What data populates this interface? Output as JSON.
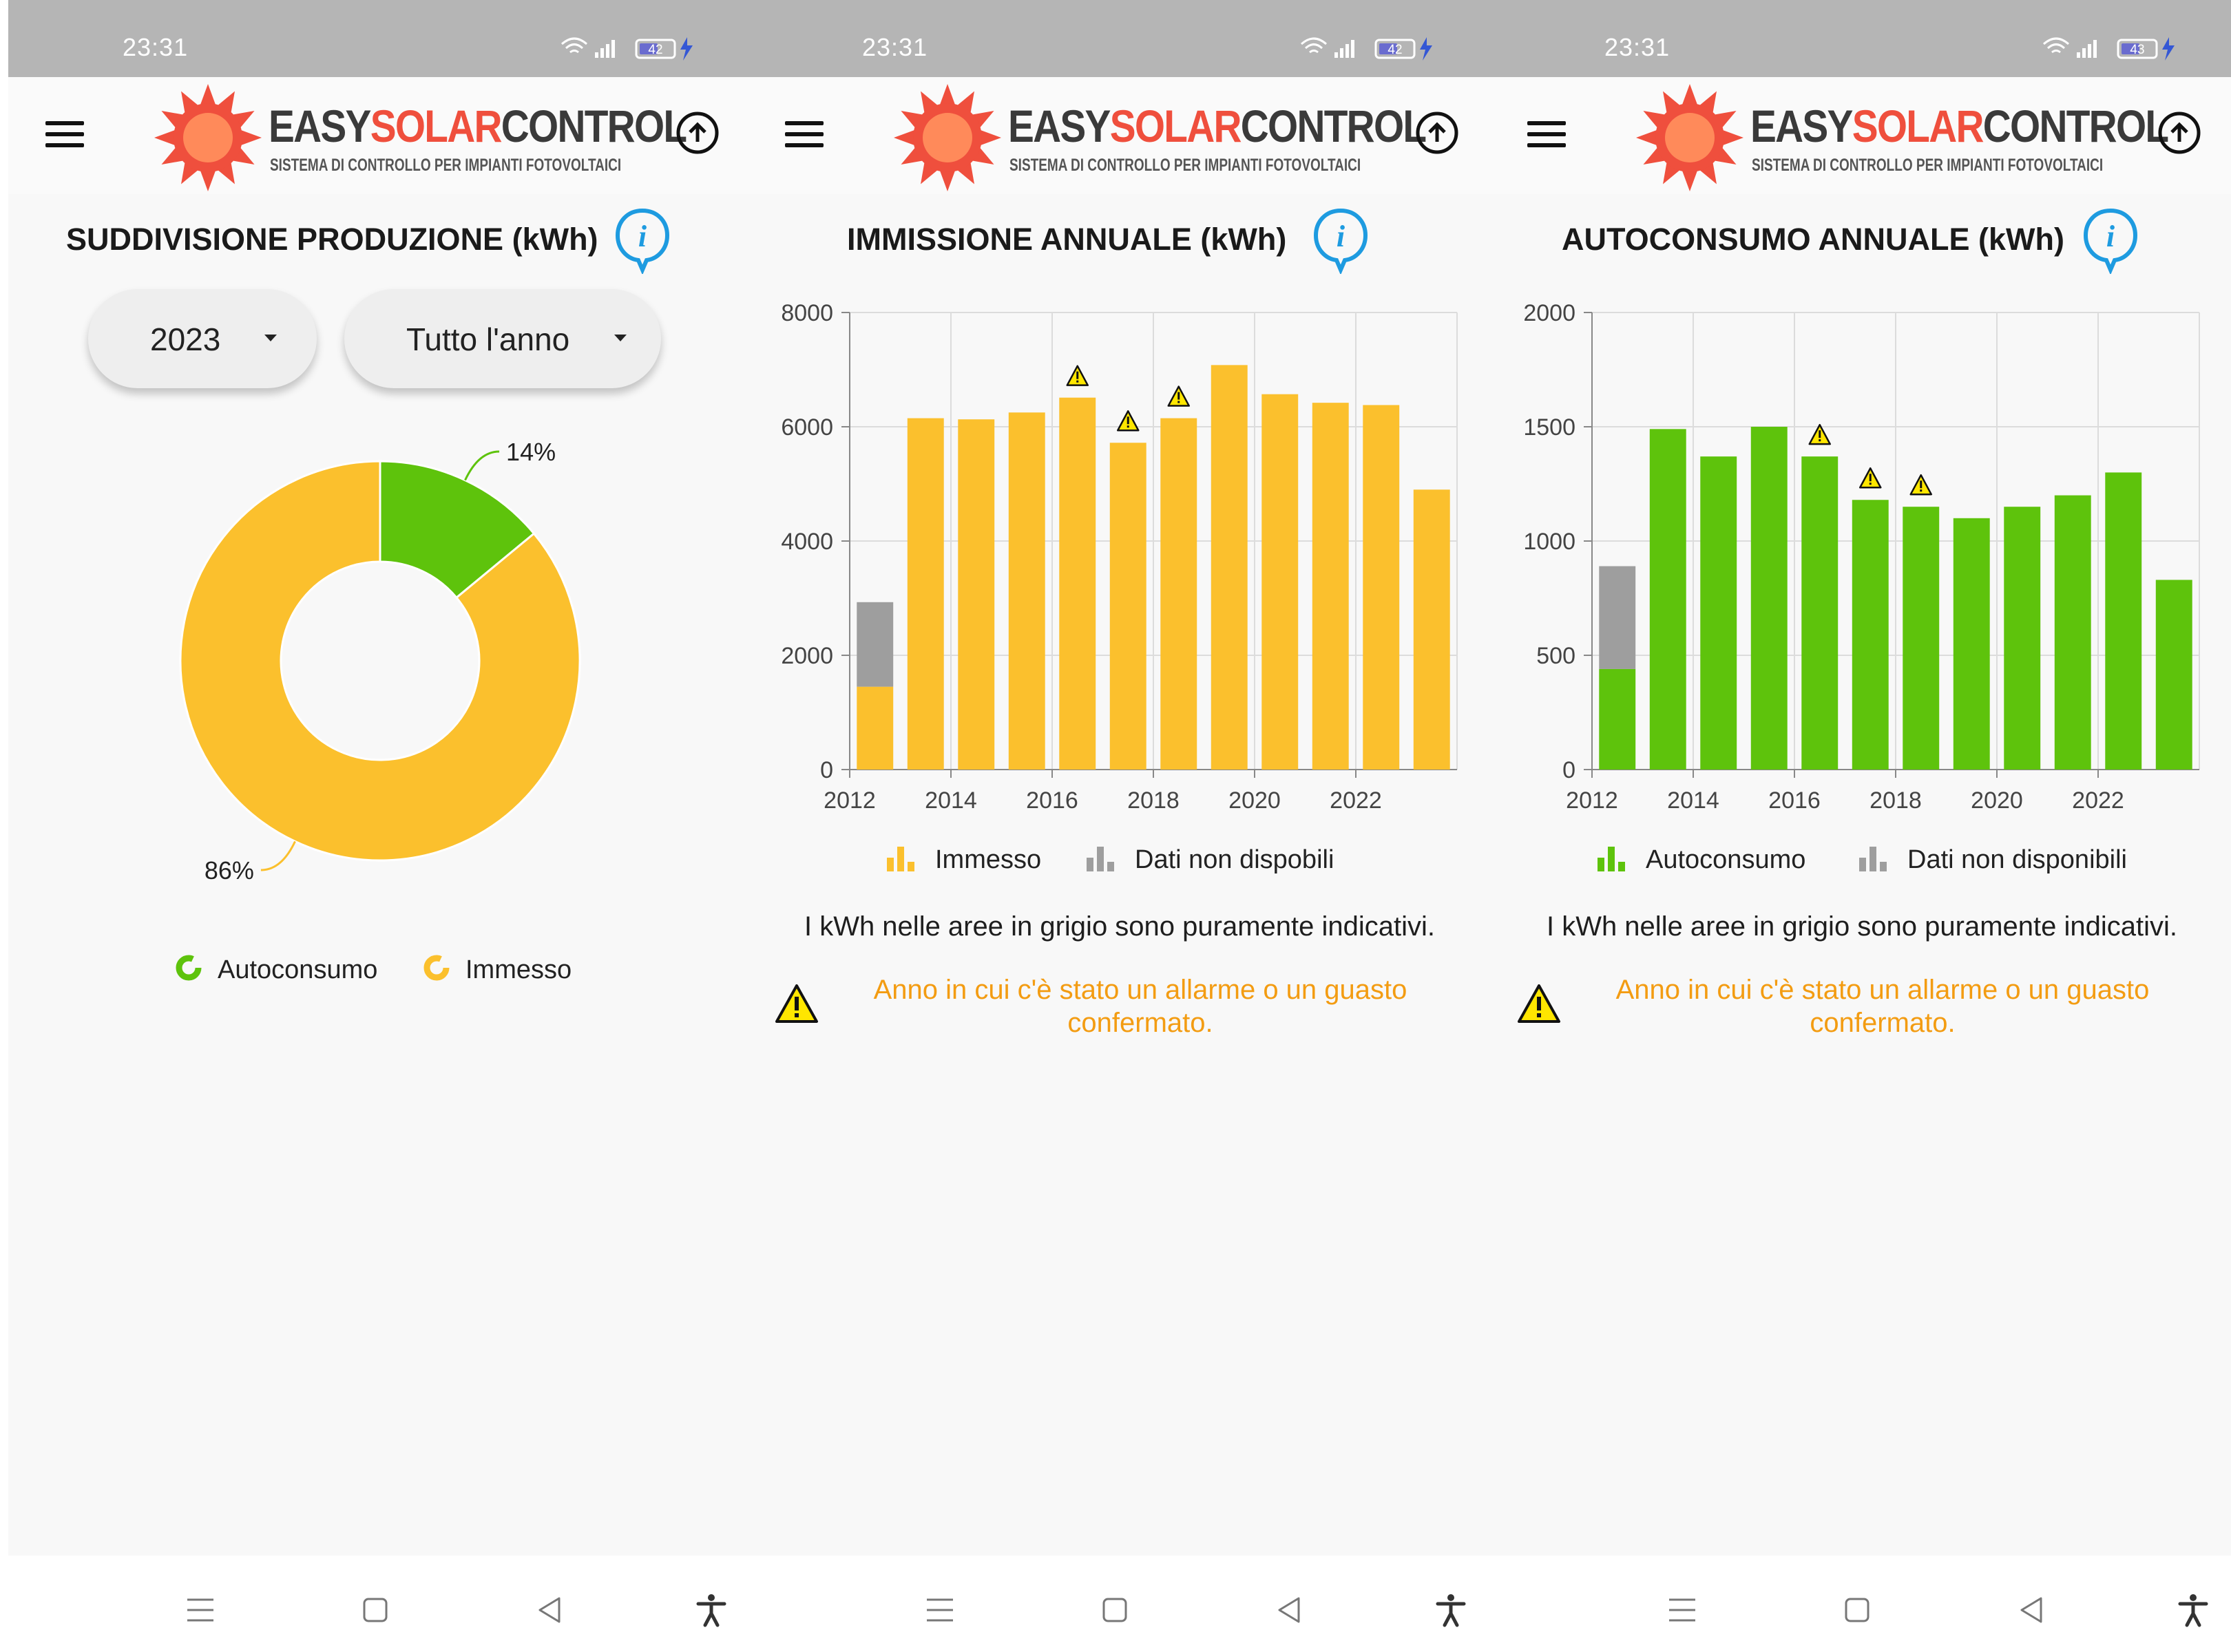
{
  "status_bar": {
    "time": "23:31",
    "battery": [
      "42",
      "42",
      "43"
    ]
  },
  "brand": {
    "word1": "EASY",
    "word2": "SOLAR",
    "word3": "CONTROL",
    "tagline": "SISTEMA DI CONTROLLO PER IMPIANTI FOTOVOLTAICI"
  },
  "colors": {
    "accent_yellow": "#fbc02d",
    "autoconsumo_green": "#5ec30c",
    "unavailable_grey": "#9e9e9e",
    "alarm_orange": "#f39c12",
    "info_blue": "#1e9be0",
    "logo_red": "#ef4f3d"
  },
  "icons": [
    "menu-icon",
    "sun-logo-icon",
    "upload-icon",
    "info-icon",
    "caret-down-icon",
    "warning-icon",
    "recents-icon",
    "home-icon",
    "back-icon",
    "accessibility-icon",
    "wifi-icon",
    "signal-icon",
    "battery-icon",
    "charging-icon"
  ],
  "screen1": {
    "title": "SUDDIVISIONE PRODUZIONE (kWh)",
    "year_select": {
      "value": "2023"
    },
    "period_select": {
      "value": "Tutto l'anno"
    },
    "legend": {
      "autoconsumo": "Autoconsumo",
      "immesso": "Immesso"
    }
  },
  "screen2": {
    "title": "IMMISSIONE ANNUALE (kWh)",
    "legend": {
      "primary": "Immesso",
      "unavailable": "Dati non dispobili"
    },
    "note": "I kWh nelle aree in grigio sono puramente indicativi.",
    "alarm_note": "Anno in cui c'è stato un allarme o un guasto confermato."
  },
  "screen3": {
    "title": "AUTOCONSUMO ANNUALE (kWh)",
    "legend": {
      "primary": "Autoconsumo",
      "unavailable": "Dati non disponibili"
    },
    "note": "I kWh nelle aree in grigio sono puramente indicativi.",
    "alarm_note": "Anno in cui c'è stato un allarme o un guasto confermato."
  },
  "chart_data": [
    {
      "type": "pie",
      "slices": [
        {
          "label": "Autoconsumo",
          "value": 14,
          "display": "14%",
          "color": "#5ec30c"
        },
        {
          "label": "Immesso",
          "value": 86,
          "display": "86%",
          "color": "#fbc02d"
        }
      ],
      "legend_position": "bottom"
    },
    {
      "type": "bar",
      "categories": [
        "2012",
        "2013",
        "2014",
        "2015",
        "2016",
        "2017",
        "2018",
        "2019",
        "2020",
        "2021",
        "2022",
        "2023"
      ],
      "x_tick_labels": [
        "2012",
        "2014",
        "2016",
        "2018",
        "2020",
        "2022"
      ],
      "series": [
        {
          "name": "Immesso",
          "values": [
            1450,
            6150,
            6130,
            6250,
            6510,
            5720,
            6150,
            7080,
            6570,
            6420,
            6380,
            4900
          ],
          "color": "#fbc02d"
        },
        {
          "name": "Dati non dispobili",
          "values": [
            1480,
            0,
            0,
            0,
            0,
            0,
            0,
            0,
            0,
            0,
            0,
            0
          ],
          "color": "#9e9e9e"
        }
      ],
      "alarm_years": [
        "2016",
        "2017",
        "2018"
      ],
      "y_ticks": [
        0,
        2000,
        4000,
        6000,
        8000
      ],
      "ylim": [
        0,
        8000
      ],
      "grid": true,
      "legend_position": "bottom"
    },
    {
      "type": "bar",
      "categories": [
        "2012",
        "2013",
        "2014",
        "2015",
        "2016",
        "2017",
        "2018",
        "2019",
        "2020",
        "2021",
        "2022",
        "2023"
      ],
      "x_tick_labels": [
        "2012",
        "2014",
        "2016",
        "2018",
        "2020",
        "2022"
      ],
      "series": [
        {
          "name": "Autoconsumo",
          "values": [
            440,
            1490,
            1370,
            1500,
            1370,
            1180,
            1150,
            1100,
            1150,
            1200,
            1300,
            830
          ],
          "color": "#5ec30c"
        },
        {
          "name": "Dati non disponibili",
          "values": [
            450,
            0,
            0,
            0,
            0,
            0,
            0,
            0,
            0,
            0,
            0,
            0
          ],
          "color": "#9e9e9e"
        }
      ],
      "alarm_years": [
        "2016",
        "2017",
        "2018"
      ],
      "y_ticks": [
        0,
        500,
        1000,
        1500,
        2000
      ],
      "ylim": [
        0,
        2000
      ],
      "grid": true,
      "legend_position": "bottom"
    }
  ]
}
